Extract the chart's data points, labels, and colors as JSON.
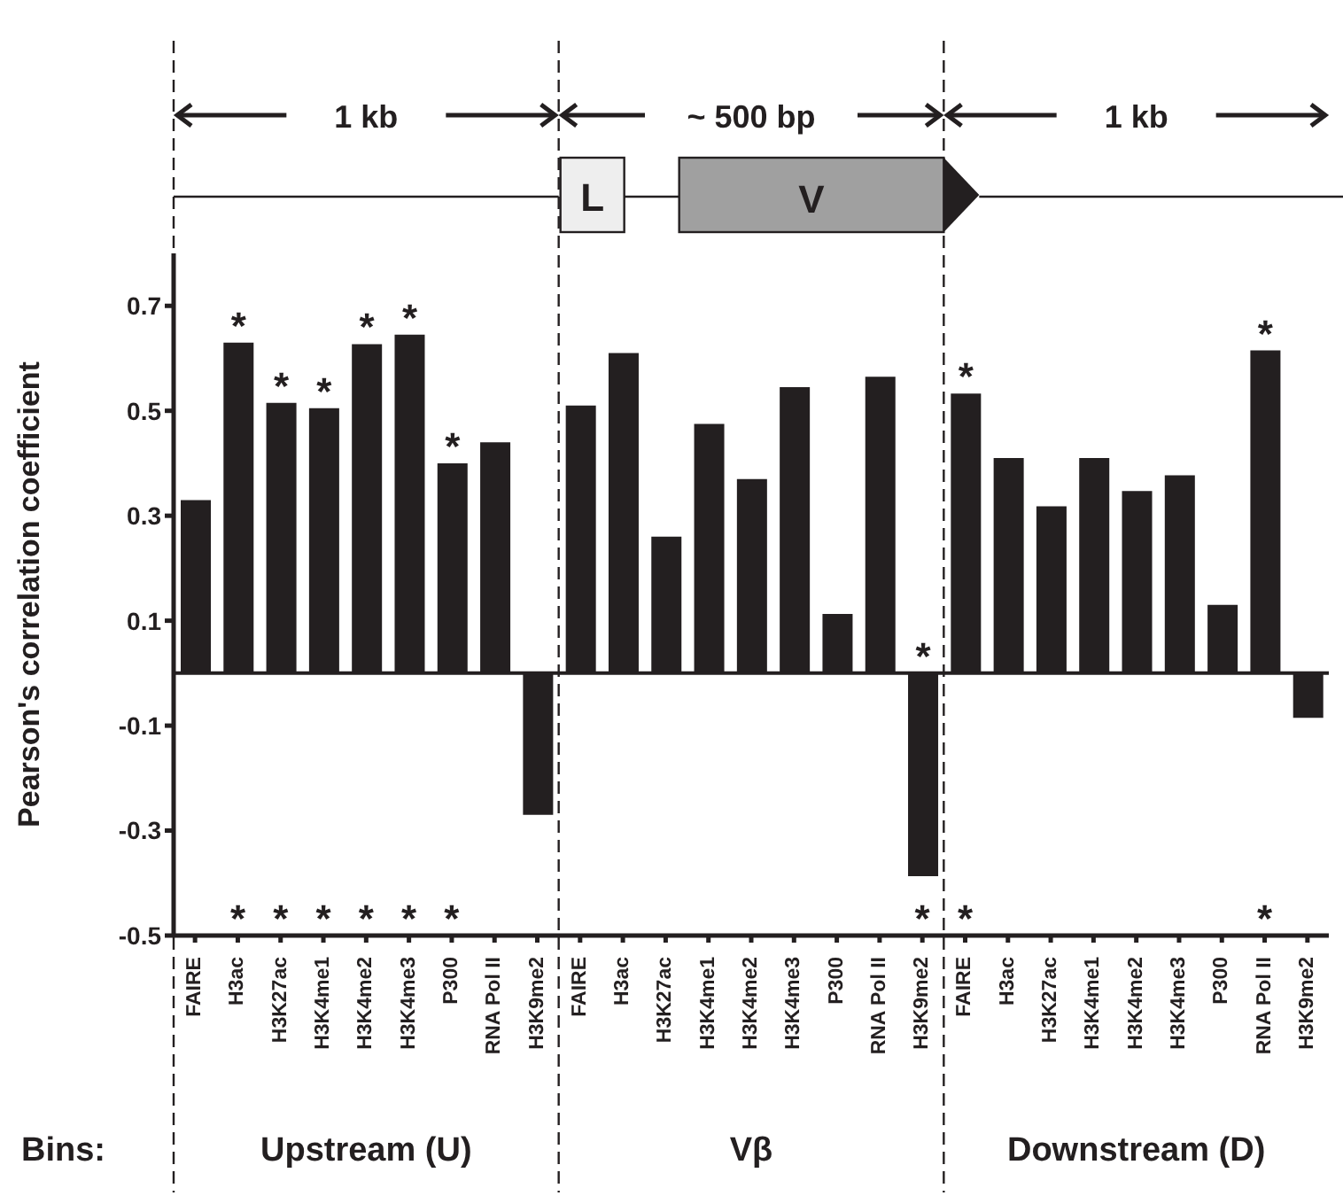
{
  "chart_data": {
    "type": "bar",
    "ylabel": "Pearson's correlation coefficient",
    "xlabel": "Bins:",
    "categories": [
      "FAIRE",
      "H3ac",
      "H3K27ac",
      "H3K4me1",
      "H3K4me2",
      "H3K4me3",
      "P300",
      "RNA Pol II",
      "H3K9me2",
      "FAIRE",
      "H3ac",
      "H3K27ac",
      "H3K4me1",
      "H3K4me2",
      "H3K4me3",
      "P300",
      "RNA Pol II",
      "H3K9me2",
      "FAIRE",
      "H3ac",
      "H3K27ac",
      "H3K4me1",
      "H3K4me2",
      "H3K4me3",
      "P300",
      "RNA Pol II",
      "H3K9me2"
    ],
    "values": [
      0.33,
      0.63,
      0.515,
      0.505,
      0.627,
      0.645,
      0.4,
      0.44,
      -0.27,
      0.51,
      0.61,
      0.26,
      0.475,
      0.37,
      0.545,
      0.113,
      0.565,
      -0.387,
      0.533,
      0.41,
      0.318,
      0.41,
      0.347,
      0.377,
      0.13,
      0.615,
      -0.085
    ],
    "color": "#231f20",
    "value_labels": [
      null,
      "*",
      "*",
      "*",
      "*",
      "*",
      "*",
      null,
      null,
      null,
      null,
      null,
      null,
      null,
      null,
      null,
      null,
      "*",
      "*",
      null,
      null,
      null,
      null,
      null,
      null,
      "*",
      null
    ],
    "ylim": [
      -0.5,
      0.8
    ],
    "yticks": [
      -0.5,
      -0.3,
      -0.1,
      0.1,
      0.3,
      0.5,
      0.7
    ],
    "ref_lines": [
      {
        "axis": "y",
        "value": 0
      }
    ],
    "annotations": [
      "1 kb",
      "~ 500 bp",
      "1 kb",
      "L",
      "V",
      "Upstream (U)",
      "Vβ",
      "Downstream (D)",
      "*",
      "*",
      "*",
      "*",
      "*",
      "*",
      "*",
      "*",
      "*"
    ]
  }
}
